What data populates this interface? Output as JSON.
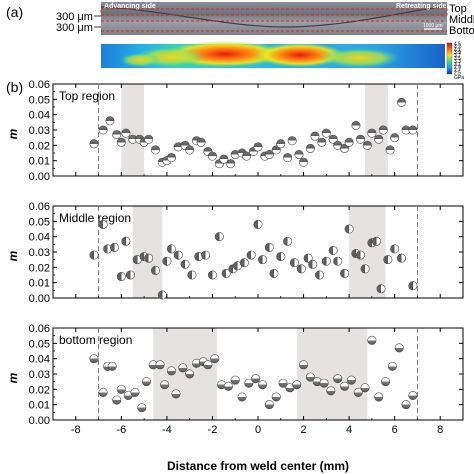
{
  "panel_a": {
    "label": "(a)",
    "scale_labels": [
      "300 μm",
      "300 μm"
    ],
    "advancing_side": "Advancing side",
    "retreating_side": "Retreating side",
    "layer_labels": [
      "Top",
      "Middle",
      "Bottom"
    ],
    "scale_bar": "1000 μm",
    "colorbar_values": [
      "4.5",
      "4.3",
      "4.1",
      "3.9",
      "3.7",
      "3.5",
      "3.3",
      "3.1",
      "2.9",
      "2.7",
      "2.5"
    ],
    "colorbar_unit": "GPa"
  },
  "panel_b": {
    "label": "(b)"
  },
  "chart_data": [
    {
      "type": "scatter",
      "title": "Top region",
      "xlabel": "",
      "ylabel": "m",
      "xlim": [
        -9,
        9
      ],
      "ylim": [
        0,
        0.06
      ],
      "yticks": [
        "0.00",
        "0.01",
        "0.02",
        "0.03",
        "0.04",
        "0.05",
        "0.06"
      ],
      "shaded_x": [
        [
          -6.0,
          -5.0
        ],
        [
          4.7,
          5.7
        ]
      ],
      "x": [
        -7.2,
        -6.8,
        -6.5,
        -6.2,
        -6.0,
        -5.8,
        -5.5,
        -5.2,
        -5.0,
        -4.8,
        -4.5,
        -4.2,
        -4.0,
        -3.8,
        -3.5,
        -3.2,
        -3.0,
        -2.7,
        -2.5,
        -2.2,
        -2.0,
        -1.7,
        -1.5,
        -1.2,
        -1.0,
        -0.7,
        -0.5,
        -0.2,
        0.0,
        0.3,
        0.5,
        0.8,
        1.0,
        1.3,
        1.5,
        1.8,
        2.0,
        2.3,
        2.5,
        2.8,
        3.0,
        3.3,
        3.5,
        3.8,
        4.0,
        4.3,
        4.5,
        4.8,
        5.0,
        5.3,
        5.5,
        5.8,
        6.0,
        6.3,
        6.5,
        6.8
      ],
      "y": [
        0.021,
        0.03,
        0.036,
        0.027,
        0.022,
        0.028,
        0.024,
        0.024,
        0.022,
        0.024,
        0.017,
        0.009,
        0.01,
        0.012,
        0.019,
        0.02,
        0.017,
        0.023,
        0.022,
        0.016,
        0.013,
        0.008,
        0.011,
        0.008,
        0.014,
        0.015,
        0.013,
        0.016,
        0.019,
        0.013,
        0.014,
        0.017,
        0.021,
        0.012,
        0.023,
        0.014,
        0.009,
        0.018,
        0.026,
        0.022,
        0.028,
        0.024,
        0.02,
        0.018,
        0.022,
        0.033,
        0.024,
        0.02,
        0.028,
        0.024,
        0.03,
        0.017,
        0.025,
        0.048,
        0.03,
        0.03
      ]
    },
    {
      "type": "scatter",
      "title": "Middle region",
      "xlabel": "",
      "ylabel": "m",
      "xlim": [
        -9,
        9
      ],
      "ylim": [
        0,
        0.06
      ],
      "yticks": [
        "0.00",
        "0.01",
        "0.02",
        "0.03",
        "0.04",
        "0.05",
        "0.06"
      ],
      "shaded_x": [
        [
          -5.5,
          -4.2
        ],
        [
          4.0,
          5.6
        ]
      ],
      "x": [
        -7.2,
        -6.8,
        -6.6,
        -6.3,
        -6.0,
        -5.8,
        -5.6,
        -5.3,
        -5.0,
        -4.8,
        -4.5,
        -4.2,
        -4.0,
        -3.8,
        -3.5,
        -3.2,
        -2.9,
        -2.6,
        -2.3,
        -2.0,
        -1.7,
        -1.4,
        -1.1,
        -0.9,
        -0.6,
        -0.3,
        0.0,
        0.2,
        0.5,
        0.7,
        1.0,
        1.3,
        1.6,
        1.9,
        2.2,
        2.4,
        2.7,
        3.0,
        3.3,
        3.5,
        3.8,
        4.0,
        4.3,
        4.5,
        4.7,
        5.0,
        5.2,
        5.4,
        5.7,
        6.0,
        6.3,
        6.8
      ],
      "y": [
        0.028,
        0.048,
        0.032,
        0.033,
        0.014,
        0.037,
        0.015,
        0.025,
        0.027,
        0.026,
        0.018,
        0.002,
        0.024,
        0.032,
        0.028,
        0.022,
        0.015,
        0.027,
        0.028,
        0.015,
        0.04,
        0.016,
        0.019,
        0.021,
        0.023,
        0.028,
        0.048,
        0.025,
        0.033,
        0.016,
        0.027,
        0.037,
        0.023,
        0.019,
        0.026,
        0.022,
        0.015,
        0.024,
        0.031,
        0.024,
        0.016,
        0.045,
        0.029,
        0.028,
        0.019,
        0.036,
        0.037,
        0.006,
        0.025,
        0.032,
        0.026,
        0.008
      ]
    },
    {
      "type": "scatter",
      "title": "bottom region",
      "xlabel": "Distance from weld center (mm)",
      "ylabel": "m",
      "xlim": [
        -9,
        9
      ],
      "ylim": [
        0,
        0.06
      ],
      "yticks": [
        "0.00",
        "0.01",
        "0.02",
        "0.03",
        "0.04",
        "0.05",
        "0.06"
      ],
      "xticks": [
        "-8",
        "-6",
        "-4",
        "-2",
        "0",
        "2",
        "4",
        "6",
        "8"
      ],
      "shaded_x": [
        [
          -4.6,
          -1.8
        ],
        [
          1.7,
          4.8
        ]
      ],
      "x": [
        -7.2,
        -6.8,
        -6.6,
        -6.4,
        -6.2,
        -6.0,
        -5.7,
        -5.4,
        -5.1,
        -4.9,
        -4.6,
        -4.3,
        -4.1,
        -3.8,
        -3.6,
        -3.3,
        -3.0,
        -2.7,
        -2.4,
        -2.2,
        -1.9,
        -1.6,
        -1.3,
        -1.0,
        -0.7,
        -0.4,
        -0.1,
        0.2,
        0.5,
        0.8,
        1.1,
        1.4,
        1.7,
        2.0,
        2.3,
        2.6,
        2.9,
        3.2,
        3.5,
        3.8,
        4.1,
        4.4,
        4.7,
        5.0,
        5.3,
        5.6,
        5.9,
        6.2,
        6.5,
        6.8
      ],
      "y": [
        0.04,
        0.018,
        0.035,
        0.035,
        0.013,
        0.02,
        0.016,
        0.018,
        0.008,
        0.025,
        0.036,
        0.036,
        0.023,
        0.032,
        0.017,
        0.034,
        0.03,
        0.037,
        0.038,
        0.036,
        0.04,
        0.023,
        0.022,
        0.026,
        0.015,
        0.024,
        0.027,
        0.023,
        0.01,
        0.015,
        0.024,
        0.021,
        0.023,
        0.036,
        0.028,
        0.025,
        0.024,
        0.019,
        0.027,
        0.022,
        0.026,
        0.018,
        0.021,
        0.052,
        0.015,
        0.025,
        0.035,
        0.047,
        0.01,
        0.016
      ]
    }
  ]
}
